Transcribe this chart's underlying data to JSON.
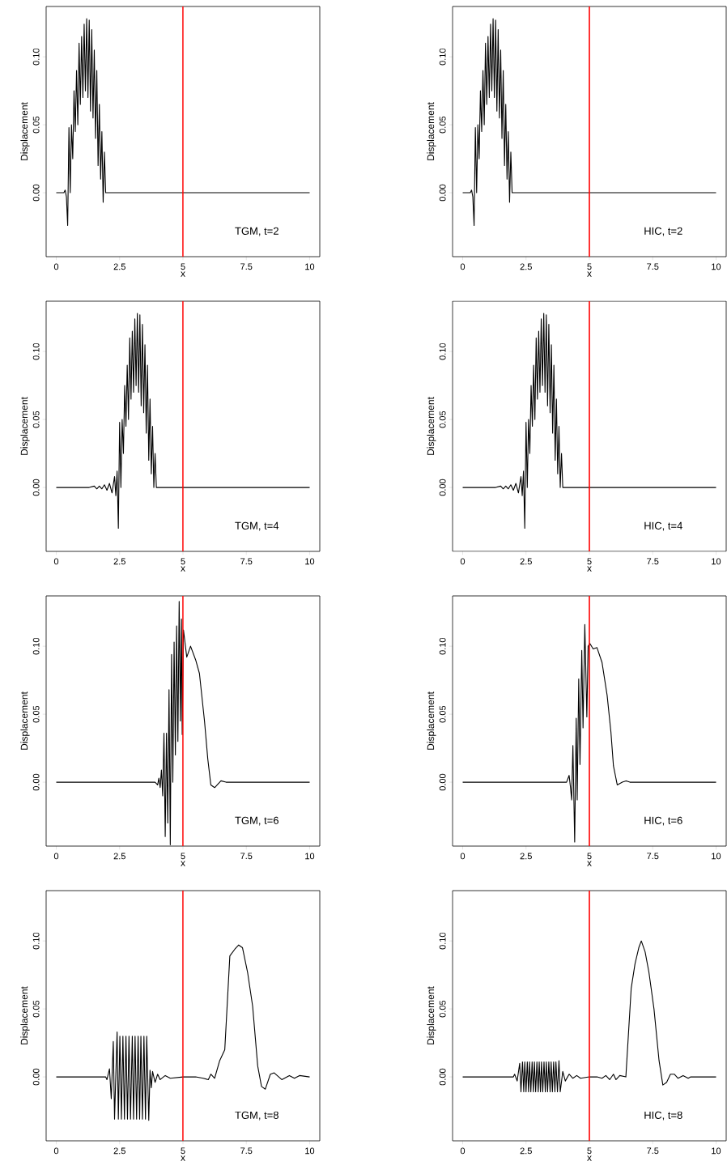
{
  "chart_data": [
    {
      "type": "line",
      "xlabel": "x",
      "ylabel": "Displacement",
      "annotations": [
        "TGM, t=2"
      ],
      "xlim": [
        -0.4,
        10.4
      ],
      "ylim": [
        -0.047,
        0.137
      ],
      "xticks": [
        0,
        2.5,
        5,
        7.5,
        10
      ],
      "yticks": [
        {
          "value": 0,
          "label": "0.00"
        },
        {
          "value": 0.05,
          "label": "0.05"
        },
        {
          "value": 0.1,
          "label": "0.10"
        }
      ],
      "marker": "none",
      "line_style": "solid",
      "ref_lines": [
        {
          "axis": "x",
          "value": 5,
          "color": "#ff0000"
        }
      ],
      "series": [
        {
          "color": "#000000",
          "x": [
            0,
            0.3,
            0.35,
            0.4,
            0.45,
            0.5,
            0.55,
            0.6,
            0.65,
            0.7,
            0.75,
            0.8,
            0.85,
            0.9,
            0.95,
            1.0,
            1.05,
            1.1,
            1.15,
            1.2,
            1.25,
            1.3,
            1.35,
            1.4,
            1.45,
            1.5,
            1.55,
            1.6,
            1.65,
            1.7,
            1.75,
            1.8,
            1.85,
            1.9,
            1.95,
            2.0,
            10
          ],
          "values": [
            0,
            0,
            0.002,
            -0.003,
            -0.024,
            0.048,
            0.0,
            0.05,
            0.025,
            0.075,
            0.045,
            0.09,
            0.05,
            0.11,
            0.065,
            0.115,
            0.07,
            0.124,
            0.075,
            0.128,
            0.07,
            0.127,
            0.06,
            0.12,
            0.055,
            0.105,
            0.04,
            0.09,
            0.02,
            0.065,
            0.01,
            0.045,
            -0.007,
            0.03,
            0.0,
            0,
            0
          ]
        }
      ]
    },
    {
      "type": "line",
      "xlabel": "x",
      "ylabel": "Displacement",
      "annotations": [
        "HIC, t=2"
      ],
      "xlim": [
        -0.4,
        10.4
      ],
      "ylim": [
        -0.047,
        0.137
      ],
      "xticks": [
        0,
        2.5,
        5,
        7.5,
        10
      ],
      "yticks": [
        {
          "value": 0,
          "label": "0.00"
        },
        {
          "value": 0.05,
          "label": "0.05"
        },
        {
          "value": 0.1,
          "label": "0.10"
        }
      ],
      "marker": "none",
      "line_style": "solid",
      "ref_lines": [
        {
          "axis": "x",
          "value": 5,
          "color": "#ff0000"
        }
      ],
      "series": [
        {
          "color": "#000000",
          "x": [
            0,
            0.3,
            0.35,
            0.4,
            0.45,
            0.5,
            0.55,
            0.6,
            0.65,
            0.7,
            0.75,
            0.8,
            0.85,
            0.9,
            0.95,
            1.0,
            1.05,
            1.1,
            1.15,
            1.2,
            1.25,
            1.3,
            1.35,
            1.4,
            1.45,
            1.5,
            1.55,
            1.6,
            1.65,
            1.7,
            1.75,
            1.8,
            1.85,
            1.9,
            1.95,
            2.0,
            10
          ],
          "values": [
            0,
            0,
            0.002,
            -0.003,
            -0.024,
            0.048,
            0.0,
            0.05,
            0.025,
            0.075,
            0.045,
            0.09,
            0.05,
            0.11,
            0.065,
            0.115,
            0.07,
            0.124,
            0.075,
            0.128,
            0.07,
            0.127,
            0.06,
            0.12,
            0.055,
            0.105,
            0.04,
            0.09,
            0.02,
            0.065,
            0.01,
            0.045,
            -0.007,
            0.03,
            0.0,
            0,
            0
          ]
        }
      ]
    },
    {
      "type": "line",
      "xlabel": "x",
      "ylabel": "Displacement",
      "annotations": [
        "TGM, t=4"
      ],
      "xlim": [
        -0.4,
        10.4
      ],
      "ylim": [
        -0.047,
        0.137
      ],
      "xticks": [
        0,
        2.5,
        5,
        7.5,
        10
      ],
      "yticks": [
        {
          "value": 0,
          "label": "0.00"
        },
        {
          "value": 0.05,
          "label": "0.05"
        },
        {
          "value": 0.1,
          "label": "0.10"
        }
      ],
      "marker": "none",
      "line_style": "solid",
      "ref_lines": [
        {
          "axis": "x",
          "value": 5,
          "color": "#ff0000"
        }
      ],
      "series": [
        {
          "color": "#000000",
          "x": [
            0,
            1.3,
            1.5,
            1.6,
            1.7,
            1.8,
            1.9,
            2.0,
            2.1,
            2.2,
            2.3,
            2.35,
            2.4,
            2.45,
            2.5,
            2.55,
            2.6,
            2.65,
            2.7,
            2.75,
            2.8,
            2.85,
            2.9,
            2.95,
            3.0,
            3.05,
            3.1,
            3.15,
            3.2,
            3.25,
            3.3,
            3.35,
            3.4,
            3.45,
            3.5,
            3.55,
            3.6,
            3.65,
            3.7,
            3.75,
            3.8,
            3.85,
            3.9,
            3.95,
            4.0,
            10
          ],
          "values": [
            0,
            0,
            0.001,
            -0.001,
            0.001,
            -0.001,
            0.002,
            -0.002,
            0.003,
            -0.004,
            0.008,
            -0.006,
            0.012,
            -0.03,
            0.048,
            0.0,
            0.05,
            0.025,
            0.075,
            0.045,
            0.09,
            0.05,
            0.11,
            0.065,
            0.115,
            0.07,
            0.124,
            0.075,
            0.128,
            0.07,
            0.127,
            0.06,
            0.12,
            0.055,
            0.105,
            0.04,
            0.09,
            0.02,
            0.065,
            0.01,
            0.045,
            0.0,
            0.025,
            0.0,
            0,
            0
          ]
        }
      ]
    },
    {
      "type": "line",
      "xlabel": "x",
      "ylabel": "Displacement",
      "annotations": [
        "HIC, t=4"
      ],
      "xlim": [
        -0.4,
        10.4
      ],
      "ylim": [
        -0.047,
        0.137
      ],
      "xticks": [
        0,
        2.5,
        5,
        7.5,
        10
      ],
      "yticks": [
        {
          "value": 0,
          "label": "0.00"
        },
        {
          "value": 0.05,
          "label": "0.05"
        },
        {
          "value": 0.1,
          "label": "0.10"
        }
      ],
      "marker": "none",
      "line_style": "solid",
      "ref_lines": [
        {
          "axis": "x",
          "value": 5,
          "color": "#ff0000"
        }
      ],
      "series": [
        {
          "color": "#000000",
          "x": [
            0,
            1.3,
            1.5,
            1.6,
            1.7,
            1.8,
            1.9,
            2.0,
            2.1,
            2.2,
            2.3,
            2.35,
            2.4,
            2.45,
            2.5,
            2.55,
            2.6,
            2.65,
            2.7,
            2.75,
            2.8,
            2.85,
            2.9,
            2.95,
            3.0,
            3.05,
            3.1,
            3.15,
            3.2,
            3.25,
            3.3,
            3.35,
            3.4,
            3.45,
            3.5,
            3.55,
            3.6,
            3.65,
            3.7,
            3.75,
            3.8,
            3.85,
            3.9,
            3.95,
            4.0,
            10
          ],
          "values": [
            0,
            0,
            0.001,
            -0.001,
            0.001,
            -0.001,
            0.002,
            -0.002,
            0.003,
            -0.004,
            0.008,
            -0.006,
            0.012,
            -0.03,
            0.048,
            0.0,
            0.05,
            0.025,
            0.075,
            0.045,
            0.09,
            0.05,
            0.11,
            0.065,
            0.115,
            0.07,
            0.124,
            0.075,
            0.128,
            0.07,
            0.127,
            0.06,
            0.12,
            0.055,
            0.105,
            0.04,
            0.09,
            0.02,
            0.065,
            0.01,
            0.045,
            0.0,
            0.025,
            0.0,
            0,
            0
          ]
        }
      ]
    },
    {
      "type": "line",
      "xlabel": "x",
      "ylabel": "Displacement",
      "annotations": [
        "TGM, t=6"
      ],
      "xlim": [
        -0.4,
        10.4
      ],
      "ylim": [
        -0.047,
        0.137
      ],
      "xticks": [
        0,
        2.5,
        5,
        7.5,
        10
      ],
      "yticks": [
        {
          "value": 0,
          "label": "0.00"
        },
        {
          "value": 0.05,
          "label": "0.05"
        },
        {
          "value": 0.1,
          "label": "0.10"
        }
      ],
      "marker": "none",
      "line_style": "solid",
      "ref_lines": [
        {
          "axis": "x",
          "value": 5,
          "color": "#ff0000"
        }
      ],
      "series": [
        {
          "color": "#000000",
          "x": [
            0,
            3.9,
            4.0,
            4.05,
            4.1,
            4.15,
            4.2,
            4.25,
            4.3,
            4.35,
            4.4,
            4.45,
            4.5,
            4.55,
            4.6,
            4.65,
            4.7,
            4.75,
            4.8,
            4.85,
            4.9,
            4.94,
            4.97,
            5.02,
            5.15,
            5.3,
            5.5,
            5.65,
            5.85,
            5.98,
            6.1,
            6.25,
            6.5,
            6.7,
            10
          ],
          "values": [
            0,
            0,
            -0.002,
            0.003,
            -0.004,
            0.009,
            -0.01,
            0.036,
            -0.04,
            0.036,
            -0.03,
            0.068,
            -0.046,
            0.094,
            0.0,
            0.103,
            0.02,
            0.115,
            0.03,
            0.133,
            0.045,
            0.12,
            0.035,
            0.112,
            0.092,
            0.1,
            0.09,
            0.08,
            0.045,
            0.017,
            -0.002,
            -0.004,
            0.001,
            0,
            0
          ]
        }
      ]
    },
    {
      "type": "line",
      "xlabel": "x",
      "ylabel": "Displacement",
      "annotations": [
        "HIC, t=6"
      ],
      "xlim": [
        -0.4,
        10.4
      ],
      "ylim": [
        -0.047,
        0.137
      ],
      "xticks": [
        0,
        2.5,
        5,
        7.5,
        10
      ],
      "yticks": [
        {
          "value": 0,
          "label": "0.00"
        },
        {
          "value": 0.05,
          "label": "0.05"
        },
        {
          "value": 0.1,
          "label": "0.10"
        }
      ],
      "marker": "none",
      "line_style": "solid",
      "ref_lines": [
        {
          "axis": "x",
          "value": 5,
          "color": "#ff0000"
        }
      ],
      "series": [
        {
          "color": "#000000",
          "x": [
            0,
            4.1,
            4.2,
            4.25,
            4.3,
            4.35,
            4.42,
            4.48,
            4.52,
            4.58,
            4.63,
            4.7,
            4.75,
            4.82,
            4.9,
            4.95,
            5.02,
            5.15,
            5.3,
            5.5,
            5.7,
            5.85,
            5.95,
            6.1,
            6.3,
            6.45,
            6.6,
            10
          ],
          "values": [
            0,
            0,
            0.005,
            -0.003,
            -0.013,
            0.027,
            -0.044,
            0.047,
            -0.013,
            0.076,
            0.013,
            0.097,
            0.04,
            0.116,
            0.048,
            0.1,
            0.102,
            0.098,
            0.099,
            0.088,
            0.064,
            0.037,
            0.012,
            -0.002,
            0,
            0.001,
            0,
            0
          ]
        }
      ]
    },
    {
      "type": "line",
      "xlabel": "x",
      "ylabel": "Displacement",
      "annotations": [
        "TGM, t=8"
      ],
      "xlim": [
        -0.4,
        10.4
      ],
      "ylim": [
        -0.047,
        0.137
      ],
      "xticks": [
        0,
        2.5,
        5,
        7.5,
        10
      ],
      "yticks": [
        {
          "value": 0,
          "label": "0.00"
        },
        {
          "value": 0.05,
          "label": "0.05"
        },
        {
          "value": 0.1,
          "label": "0.10"
        }
      ],
      "marker": "none",
      "line_style": "solid",
      "ref_lines": [
        {
          "axis": "x",
          "value": 5,
          "color": "#ff0000"
        }
      ],
      "series": [
        {
          "color": "#000000",
          "x": [
            0,
            1.95,
            2.0,
            2.1,
            2.17,
            2.25,
            2.3,
            2.4,
            2.45,
            2.51,
            2.57,
            2.63,
            2.69,
            2.75,
            2.81,
            2.87,
            2.93,
            3.0,
            3.05,
            3.11,
            3.17,
            3.23,
            3.29,
            3.34,
            3.4,
            3.46,
            3.52,
            3.57,
            3.65,
            3.7,
            3.75,
            3.8,
            3.9,
            4.0,
            4.1,
            4.3,
            4.5,
            5.0,
            5.5,
            5.8,
            6.0,
            6.1,
            6.25,
            6.45,
            6.65,
            6.85,
            7.05,
            7.2,
            7.35,
            7.55,
            7.75,
            7.95,
            8.1,
            8.25,
            8.45,
            8.6,
            8.9,
            9.2,
            9.4,
            9.6,
            10
          ],
          "values": [
            0,
            0,
            -0.002,
            0.006,
            -0.016,
            0.026,
            -0.031,
            0.033,
            -0.031,
            0.03,
            -0.031,
            0.03,
            -0.031,
            0.03,
            -0.031,
            0.03,
            -0.031,
            0.03,
            -0.031,
            0.03,
            -0.031,
            0.03,
            -0.031,
            0.03,
            -0.031,
            0.03,
            -0.031,
            0.03,
            -0.032,
            0.005,
            -0.008,
            0.004,
            -0.004,
            0.002,
            -0.002,
            0.001,
            -0.001,
            0,
            0,
            -0.001,
            -0.002,
            0.002,
            -0.001,
            0.012,
            0.02,
            0.089,
            0.094,
            0.097,
            0.095,
            0.077,
            0.052,
            0.008,
            -0.007,
            -0.009,
            0.002,
            0.003,
            -0.002,
            0.001,
            -0.001,
            0.001,
            0
          ]
        }
      ]
    },
    {
      "type": "line",
      "xlabel": "x",
      "ylabel": "Displacement",
      "annotations": [
        "HIC, t=8"
      ],
      "xlim": [
        -0.4,
        10.4
      ],
      "ylim": [
        -0.047,
        0.137
      ],
      "xticks": [
        0,
        2.5,
        5,
        7.5,
        10
      ],
      "yticks": [
        {
          "value": 0,
          "label": "0.00"
        },
        {
          "value": 0.05,
          "label": "0.05"
        },
        {
          "value": 0.1,
          "label": "0.10"
        }
      ],
      "marker": "none",
      "line_style": "solid",
      "ref_lines": [
        {
          "axis": "x",
          "value": 5,
          "color": "#ff0000"
        }
      ],
      "series": [
        {
          "color": "#000000",
          "x": [
            0,
            2.0,
            2.05,
            2.15,
            2.25,
            2.3,
            2.36,
            2.41,
            2.45,
            2.5,
            2.55,
            2.6,
            2.64,
            2.69,
            2.74,
            2.79,
            2.83,
            2.88,
            2.93,
            2.98,
            3.02,
            3.07,
            3.11,
            3.16,
            3.21,
            3.26,
            3.3,
            3.35,
            3.4,
            3.45,
            3.49,
            3.54,
            3.59,
            3.64,
            3.68,
            3.74,
            3.8,
            3.85,
            3.95,
            4.05,
            4.2,
            4.35,
            4.5,
            4.65,
            5.0,
            5.3,
            5.5,
            5.65,
            5.8,
            5.95,
            6.05,
            6.2,
            6.44,
            6.65,
            6.8,
            6.95,
            7.05,
            7.2,
            7.35,
            7.55,
            7.75,
            7.9,
            8.05,
            8.2,
            8.35,
            8.5,
            8.7,
            8.9,
            9.0,
            10
          ],
          "values": [
            0,
            0,
            0.002,
            -0.003,
            0.01,
            -0.011,
            0.011,
            -0.011,
            0.011,
            -0.011,
            0.011,
            -0.011,
            0.011,
            -0.011,
            0.011,
            -0.011,
            0.011,
            -0.011,
            0.011,
            -0.011,
            0.011,
            -0.011,
            0.011,
            -0.011,
            0.011,
            -0.011,
            0.011,
            -0.011,
            0.011,
            -0.011,
            0.011,
            -0.011,
            0.011,
            -0.011,
            0.011,
            -0.011,
            0.012,
            -0.011,
            0.004,
            -0.003,
            0.002,
            -0.001,
            0.001,
            -0.001,
            0,
            0,
            -0.001,
            0.001,
            -0.002,
            0.002,
            -0.002,
            0.001,
            0,
            0.065,
            0.083,
            0.095,
            0.1,
            0.092,
            0.077,
            0.05,
            0.012,
            -0.006,
            -0.004,
            0.002,
            0.002,
            -0.001,
            0.001,
            -0.001,
            0,
            0
          ]
        }
      ]
    }
  ]
}
